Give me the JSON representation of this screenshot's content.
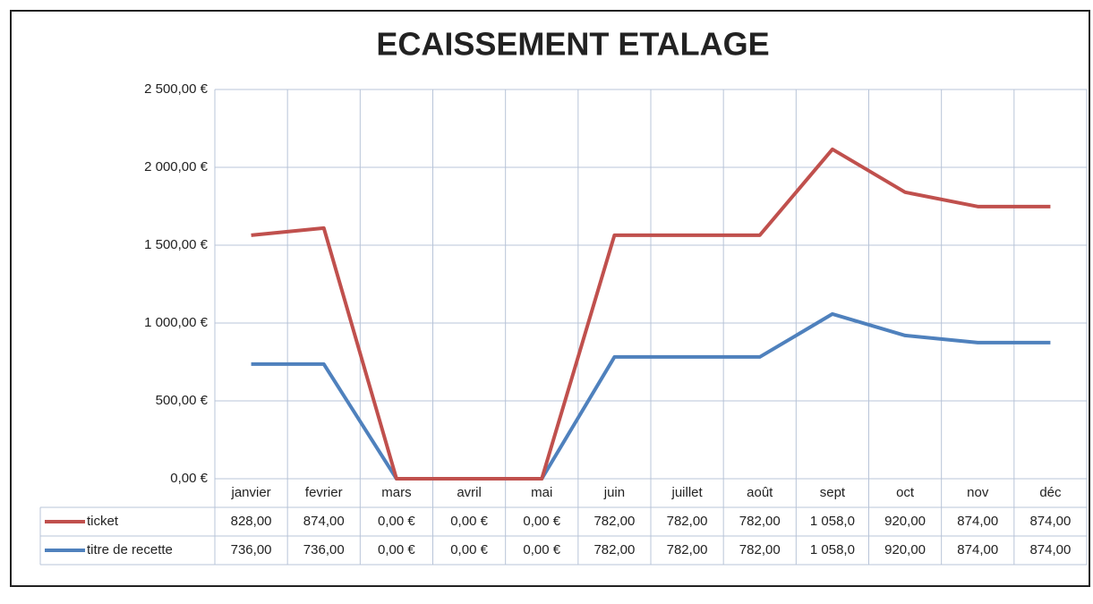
{
  "chart_data": {
    "type": "stacked_line",
    "title": "ECAISSEMENT ETALAGE",
    "categories": [
      "janvier",
      "fevrier",
      "mars",
      "avril",
      "mai",
      "juin",
      "juillet",
      "août",
      "sept",
      "oct",
      "nov",
      "déc"
    ],
    "series": [
      {
        "name": "titre de recette",
        "color": "#4f81bd",
        "values": [
          736,
          736,
          0,
          0,
          0,
          782,
          782,
          782,
          1058,
          920,
          874,
          874
        ],
        "value_labels": [
          "736,00",
          "736,00",
          "0,00 €",
          "0,00 €",
          "0,00 €",
          "782,00",
          "782,00",
          "782,00",
          "1 058,0",
          "920,00",
          "874,00",
          "874,00"
        ]
      },
      {
        "name": "ticket",
        "color": "#c0504d",
        "values": [
          828,
          874,
          0,
          0,
          0,
          782,
          782,
          782,
          1058,
          920,
          874,
          874
        ],
        "value_labels": [
          "828,00",
          "874,00",
          "0,00 €",
          "0,00 €",
          "0,00 €",
          "782,00",
          "782,00",
          "782,00",
          "1 058,0",
          "920,00",
          "874,00",
          "874,00"
        ]
      }
    ],
    "ylim": [
      0,
      2500
    ],
    "yticks": [
      {
        "value": 0,
        "label": "0,00 €"
      },
      {
        "value": 500,
        "label": "500,00 €"
      },
      {
        "value": 1000,
        "label": "1 000,00 €"
      },
      {
        "value": 1500,
        "label": "1 500,00 €"
      },
      {
        "value": 2000,
        "label": "2 000,00 €"
      },
      {
        "value": 2500,
        "label": "2 500,00 €"
      }
    ],
    "grid": true
  }
}
